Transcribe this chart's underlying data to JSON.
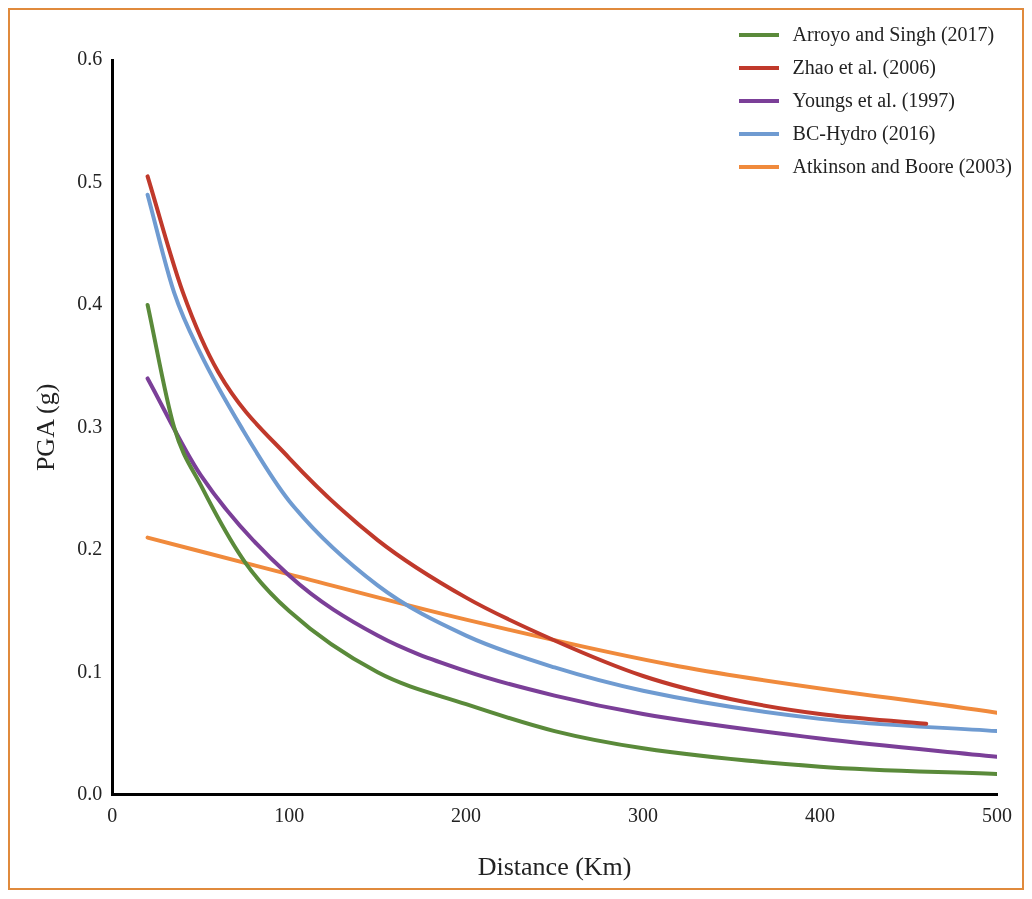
{
  "chart_data": {
    "type": "line",
    "xlabel": "Distance (Km)",
    "ylabel": "PGA (g)",
    "xlim": [
      0,
      500
    ],
    "xticks": [
      0,
      100,
      200,
      300,
      400,
      500
    ],
    "ylim": [
      0,
      0.6
    ],
    "yticks": [
      {
        "value": 0,
        "label": "0.0"
      },
      0.1,
      0.2,
      0.3,
      0.4,
      0.5,
      0.6
    ],
    "grid": false,
    "legend": "top right",
    "marker": "none",
    "line_style": "solid",
    "series": [
      {
        "name": "Arroyo and Singh (2017)",
        "color": "#5a8a3a",
        "x": [
          20,
          35,
          50,
          75,
          100,
          150,
          200,
          250,
          300,
          400,
          500
        ],
        "values": [
          0.4,
          0.3,
          0.253,
          0.19,
          0.15,
          0.1,
          0.074,
          0.052,
          0.038,
          0.023,
          0.017
        ]
      },
      {
        "name": "Zhao et al. (2006)",
        "color": "#c0392b",
        "x": [
          20,
          40,
          60,
          100,
          150,
          200,
          250,
          300,
          350,
          400,
          460
        ],
        "values": [
          0.505,
          0.41,
          0.345,
          0.275,
          0.208,
          0.161,
          0.126,
          0.097,
          0.078,
          0.066,
          0.058
        ]
      },
      {
        "name": "Youngs et al. (1997)",
        "color": "#7b3f98",
        "x": [
          20,
          50,
          100,
          150,
          200,
          250,
          300,
          400,
          500
        ],
        "values": [
          0.34,
          0.261,
          0.179,
          0.13,
          0.101,
          0.081,
          0.066,
          0.046,
          0.031
        ]
      },
      {
        "name": "BC-Hydro (2016)",
        "color": "#6f9bd1",
        "x": [
          20,
          35,
          50,
          73,
          100,
          150,
          200,
          250,
          300,
          400,
          500
        ],
        "values": [
          0.49,
          0.41,
          0.36,
          0.3,
          0.24,
          0.171,
          0.13,
          0.104,
          0.085,
          0.062,
          0.052
        ]
      },
      {
        "name": "Atkinson and Boore (2003)",
        "color": "#f08a3c",
        "x": [
          20,
          100,
          200,
          320,
          500
        ],
        "values": [
          0.21,
          0.18,
          0.143,
          0.105,
          0.067
        ]
      }
    ]
  }
}
